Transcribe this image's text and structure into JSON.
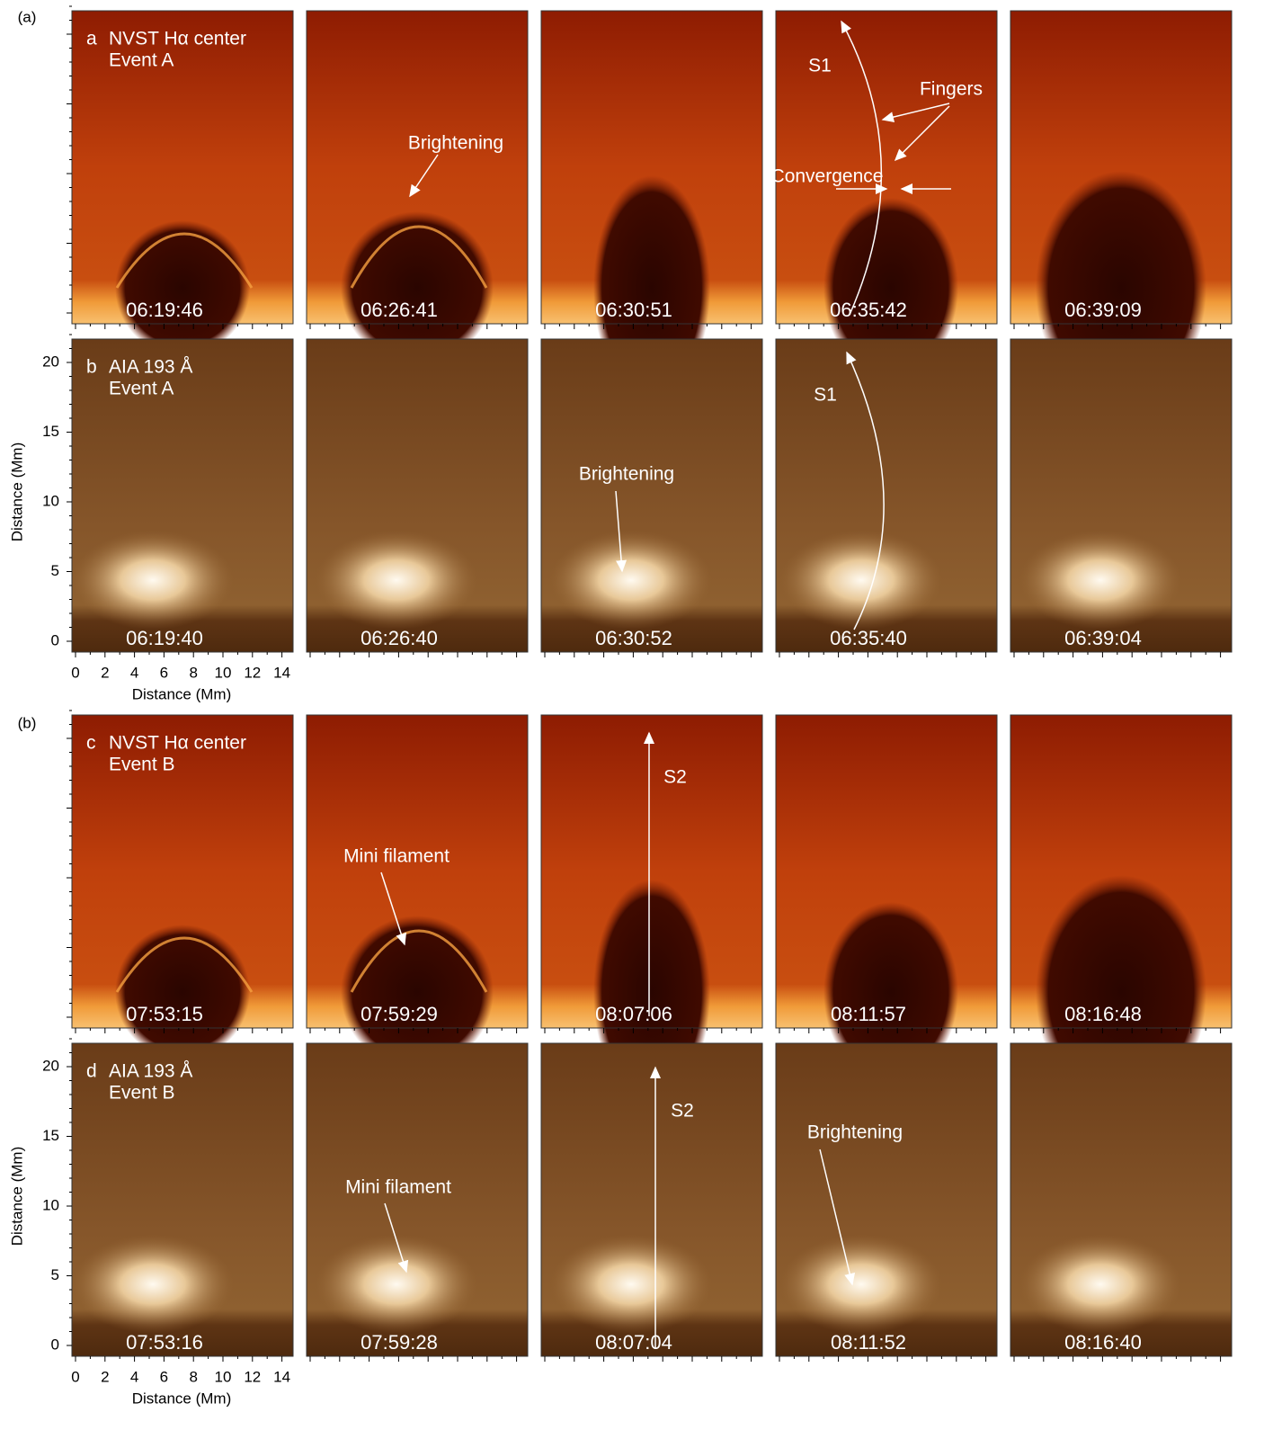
{
  "groups": [
    {
      "label": "(a)",
      "rows": [
        {
          "letter": "a",
          "title": "NVST Hα center",
          "event": "Event A",
          "kind": "ha",
          "panels": [
            {
              "time": "06:19:46",
              "annotations": []
            },
            {
              "time": "06:26:41",
              "annotations": [
                "Brightening"
              ]
            },
            {
              "time": "06:30:51",
              "annotations": []
            },
            {
              "time": "06:35:42",
              "annotations": [
                "S1",
                "Fingers",
                "Convergence"
              ]
            },
            {
              "time": "06:39:09",
              "annotations": []
            }
          ]
        },
        {
          "letter": "b",
          "title": "AIA 193 Å",
          "event": "Event A",
          "kind": "aia",
          "panels": [
            {
              "time": "06:19:40",
              "annotations": []
            },
            {
              "time": "06:26:40",
              "annotations": []
            },
            {
              "time": "06:30:52",
              "annotations": [
                "Brightening"
              ]
            },
            {
              "time": "06:35:40",
              "annotations": [
                "S1"
              ]
            },
            {
              "time": "06:39:04",
              "annotations": []
            }
          ]
        }
      ]
    },
    {
      "label": "(b)",
      "rows": [
        {
          "letter": "c",
          "title": "NVST Hα center",
          "event": "Event B",
          "kind": "ha",
          "panels": [
            {
              "time": "07:53:15",
              "annotations": []
            },
            {
              "time": "07:59:29",
              "annotations": [
                "Mini filament"
              ]
            },
            {
              "time": "08:07:06",
              "annotations": [
                "S2"
              ]
            },
            {
              "time": "08:11:57",
              "annotations": []
            },
            {
              "time": "08:16:48",
              "annotations": []
            }
          ]
        },
        {
          "letter": "d",
          "title": "AIA 193 Å",
          "event": "Event B",
          "kind": "aia",
          "panels": [
            {
              "time": "07:53:16",
              "annotations": []
            },
            {
              "time": "07:59:28",
              "annotations": [
                "Mini filament"
              ]
            },
            {
              "time": "08:07:04",
              "annotations": [
                "S2"
              ]
            },
            {
              "time": "08:11:52",
              "annotations": [
                "Brightening"
              ]
            },
            {
              "time": "08:16:40",
              "annotations": []
            }
          ]
        }
      ]
    }
  ],
  "axes": {
    "y_label": "Distance (Mm)",
    "y_ticks": [
      "0",
      "5",
      "10",
      "15",
      "20"
    ],
    "x_label": "Distance (Mm)",
    "x_ticks": [
      "0",
      "2",
      "4",
      "6",
      "8",
      "10",
      "12",
      "14"
    ]
  }
}
